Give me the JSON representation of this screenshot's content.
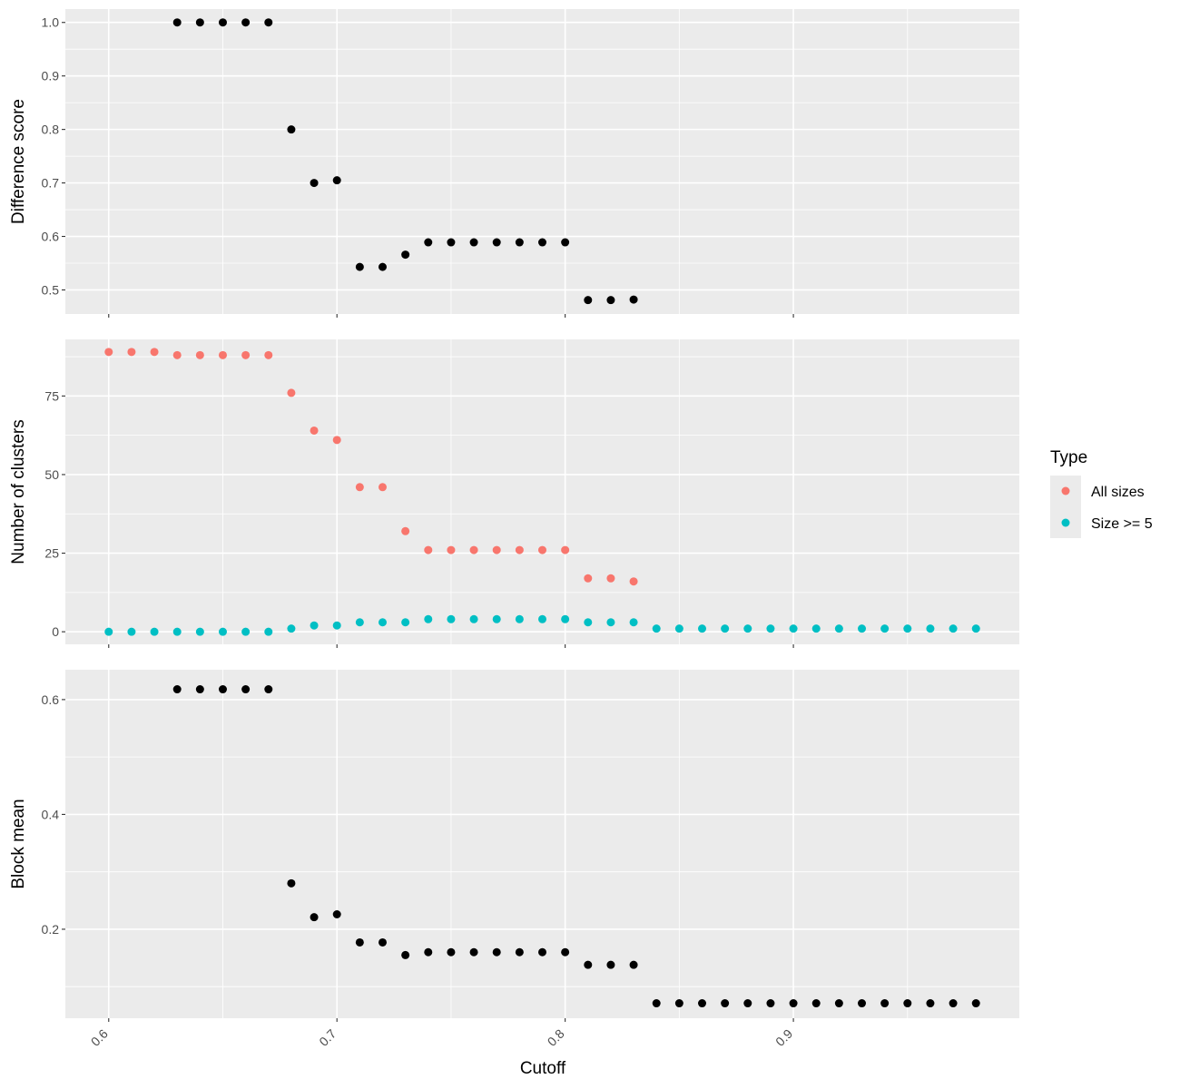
{
  "chart_data": [
    {
      "type": "scatter",
      "title": "",
      "xlabel": "",
      "ylabel": "Difference score",
      "xlim": [
        0.581,
        0.999
      ],
      "ylim": [
        0.455,
        1.025
      ],
      "yticks": [
        0.5,
        0.6,
        0.7,
        0.8,
        0.9,
        1.0
      ],
      "ytick_labels": [
        "0.5",
        "0.6",
        "0.7",
        "0.8",
        "0.9",
        "1.0"
      ],
      "grid": true,
      "series": [
        {
          "color": "#000000",
          "x": [
            0.63,
            0.64,
            0.65,
            0.66,
            0.67,
            0.68,
            0.69,
            0.7,
            0.71,
            0.72,
            0.73,
            0.74,
            0.75,
            0.76,
            0.77,
            0.78,
            0.79,
            0.8,
            0.81,
            0.82,
            0.83
          ],
          "y": [
            1.0,
            1.0,
            1.0,
            1.0,
            1.0,
            0.8,
            0.7,
            0.705,
            0.543,
            0.543,
            0.566,
            0.589,
            0.589,
            0.589,
            0.589,
            0.589,
            0.589,
            0.589,
            0.481,
            0.481,
            0.482
          ]
        }
      ]
    },
    {
      "type": "scatter",
      "title": "",
      "xlabel": "",
      "ylabel": "Number of clusters",
      "xlim": [
        0.581,
        0.999
      ],
      "ylim": [
        -4,
        93
      ],
      "yticks": [
        0,
        25,
        50,
        75
      ],
      "ytick_labels": [
        "0",
        "25",
        "50",
        "75"
      ],
      "grid": true,
      "legend": {
        "title": "Type",
        "placement": "right"
      },
      "series": [
        {
          "name": "All sizes",
          "color": "#F8766D",
          "x": [
            0.6,
            0.61,
            0.62,
            0.63,
            0.64,
            0.65,
            0.66,
            0.67,
            0.68,
            0.69,
            0.7,
            0.71,
            0.72,
            0.73,
            0.74,
            0.75,
            0.76,
            0.77,
            0.78,
            0.79,
            0.8,
            0.81,
            0.82,
            0.83
          ],
          "y": [
            89,
            89,
            89,
            88,
            88,
            88,
            88,
            88,
            76,
            64,
            61,
            46,
            46,
            32,
            26,
            26,
            26,
            26,
            26,
            26,
            26,
            17,
            17,
            16
          ]
        },
        {
          "name": "Size >= 5",
          "color": "#00BFC4",
          "x": [
            0.6,
            0.61,
            0.62,
            0.63,
            0.64,
            0.65,
            0.66,
            0.67,
            0.68,
            0.69,
            0.7,
            0.71,
            0.72,
            0.73,
            0.74,
            0.75,
            0.76,
            0.77,
            0.78,
            0.79,
            0.8,
            0.81,
            0.82,
            0.83,
            0.84,
            0.85,
            0.86,
            0.87,
            0.88,
            0.89,
            0.9,
            0.91,
            0.92,
            0.93,
            0.94,
            0.95,
            0.96,
            0.97,
            0.98
          ],
          "y": [
            0,
            0,
            0,
            0,
            0,
            0,
            0,
            0,
            1,
            2,
            2,
            3,
            3,
            3,
            4,
            4,
            4,
            4,
            4,
            4,
            4,
            3,
            3,
            3,
            1,
            1,
            1,
            1,
            1,
            1,
            1,
            1,
            1,
            1,
            1,
            1,
            1,
            1,
            1
          ]
        }
      ]
    },
    {
      "type": "scatter",
      "title": "",
      "xlabel": "Cutoff",
      "ylabel": "Block mean",
      "xlim": [
        0.581,
        0.999
      ],
      "ylim": [
        0.045,
        0.652
      ],
      "yticks": [
        0.2,
        0.4,
        0.6
      ],
      "ytick_labels": [
        "0.2",
        "0.4",
        "0.6"
      ],
      "xticks": [
        0.6,
        0.7,
        0.8,
        0.9
      ],
      "xtick_labels": [
        "0.6",
        "0.7",
        "0.8",
        "0.9"
      ],
      "grid": true,
      "series": [
        {
          "color": "#000000",
          "x": [
            0.63,
            0.64,
            0.65,
            0.66,
            0.67,
            0.68,
            0.69,
            0.7,
            0.71,
            0.72,
            0.73,
            0.74,
            0.75,
            0.76,
            0.77,
            0.78,
            0.79,
            0.8,
            0.81,
            0.82,
            0.83,
            0.84,
            0.85,
            0.86,
            0.87,
            0.88,
            0.89,
            0.9,
            0.91,
            0.92,
            0.93,
            0.94,
            0.95,
            0.96,
            0.97,
            0.98
          ],
          "y": [
            0.618,
            0.618,
            0.618,
            0.618,
            0.618,
            0.28,
            0.221,
            0.226,
            0.177,
            0.177,
            0.155,
            0.16,
            0.16,
            0.16,
            0.16,
            0.16,
            0.16,
            0.16,
            0.138,
            0.138,
            0.138,
            0.071,
            0.071,
            0.071,
            0.071,
            0.071,
            0.071,
            0.071,
            0.071,
            0.071,
            0.071,
            0.071,
            0.071,
            0.071,
            0.071,
            0.071
          ]
        }
      ]
    }
  ]
}
